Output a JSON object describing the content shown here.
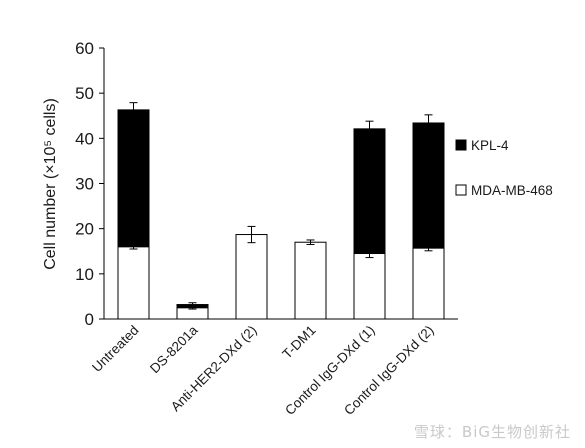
{
  "chart_data": {
    "type": "bar",
    "stacked": true,
    "ylabel": "Cell number (×10⁵ cells)",
    "ylim": [
      0,
      60
    ],
    "yticks": [
      0,
      10,
      20,
      30,
      40,
      50,
      60
    ],
    "categories": [
      "Untreated",
      "DS-8201a",
      "Anti-HER2-DXd (2)",
      "T-DM1",
      "Control IgG-DXd (1)",
      "Control IgG-DXd (2)"
    ],
    "series": [
      {
        "name": "MDA-MB-468",
        "color": "#ffffff",
        "values": [
          16.0,
          2.5,
          18.7,
          17.0,
          14.5,
          15.7
        ],
        "errors": [
          0.5,
          0.3,
          1.8,
          0.5,
          0.9,
          0.6
        ]
      },
      {
        "name": "KPL-4",
        "color": "#000000",
        "values": [
          30.3,
          0.7,
          0,
          0,
          27.6,
          27.7
        ],
        "errors": [
          1.6,
          0.4,
          0,
          0,
          1.7,
          1.8
        ]
      }
    ],
    "legend": {
      "position": "right"
    },
    "grid": false
  },
  "watermark": "雪球：BiG生物创新社"
}
